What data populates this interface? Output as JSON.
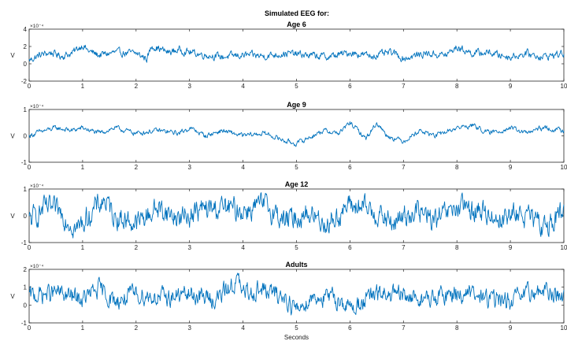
{
  "figure_title": "Simulated EEG for:",
  "chart_data": [
    {
      "type": "line",
      "title": "Age 6",
      "xlabel": "",
      "ylabel": "V",
      "y_scale_exponent": "×10⁻⁴",
      "xlim": [
        0,
        10
      ],
      "ylim": [
        -2,
        4
      ],
      "xticks": [
        "0",
        "1",
        "2",
        "3",
        "4",
        "5",
        "6",
        "7",
        "8",
        "9",
        "10"
      ],
      "yticks": [
        "-2",
        "0",
        "2",
        "4"
      ],
      "series": [
        {
          "color": "#0072BD",
          "baseline": 1.0,
          "noise_amplitude": 0.45,
          "x": [
            0,
            0.2,
            0.4,
            0.6,
            0.8,
            1.0,
            1.1,
            1.3,
            1.6,
            2.0,
            2.2,
            2.3,
            2.6,
            2.8,
            3.2,
            3.6,
            4.0,
            4.4,
            4.8,
            5.2,
            5.6,
            6.0,
            6.4,
            6.8,
            7.0,
            7.4,
            7.8,
            8.0,
            8.3,
            8.6,
            8.8,
            9.0,
            9.3,
            9.6,
            10.0
          ],
          "y": [
            0.4,
            1.0,
            1.3,
            0.9,
            1.2,
            2.2,
            1.5,
            1.0,
            1.3,
            1.2,
            0.6,
            2.1,
            1.3,
            1.6,
            1.1,
            0.8,
            1.0,
            0.9,
            1.2,
            1.0,
            0.8,
            1.3,
            0.9,
            1.3,
            0.6,
            1.2,
            1.0,
            1.9,
            1.2,
            1.3,
            1.0,
            0.8,
            1.2,
            0.8,
            1.2
          ]
        }
      ]
    },
    {
      "type": "line",
      "title": "Age 9",
      "xlabel": "",
      "ylabel": "V",
      "y_scale_exponent": "×10⁻⁴",
      "xlim": [
        0,
        10
      ],
      "ylim": [
        -1,
        1
      ],
      "xticks": [
        "0",
        "1",
        "2",
        "3",
        "4",
        "5",
        "6",
        "7",
        "8",
        "9",
        "10"
      ],
      "yticks": [
        "-1",
        "0",
        "1"
      ],
      "series": [
        {
          "color": "#0072BD",
          "baseline": 0.1,
          "noise_amplitude": 0.1,
          "x": [
            0,
            0.2,
            0.5,
            0.8,
            1.0,
            1.3,
            1.6,
            2.0,
            2.4,
            2.8,
            3.0,
            3.3,
            3.6,
            4.0,
            4.4,
            4.8,
            5.0,
            5.2,
            5.5,
            5.8,
            6.0,
            6.3,
            6.5,
            6.7,
            7.0,
            7.3,
            7.6,
            8.0,
            8.3,
            8.6,
            9.0,
            9.3,
            9.6,
            10.0
          ],
          "y": [
            0.0,
            0.15,
            0.3,
            0.2,
            0.3,
            0.1,
            0.3,
            0.1,
            0.2,
            0.1,
            0.3,
            0.0,
            0.2,
            0.0,
            0.1,
            -0.2,
            -0.3,
            -0.1,
            0.2,
            0.1,
            0.5,
            -0.1,
            0.5,
            0.0,
            -0.2,
            0.2,
            0.0,
            0.3,
            0.4,
            0.1,
            0.3,
            0.1,
            0.3,
            0.2
          ]
        }
      ]
    },
    {
      "type": "line",
      "title": "Age 12",
      "xlabel": "",
      "ylabel": "V",
      "y_scale_exponent": "×10⁻⁴",
      "xlim": [
        0,
        10
      ],
      "ylim": [
        -1,
        1
      ],
      "xticks": [
        "0",
        "1",
        "2",
        "3",
        "4",
        "5",
        "6",
        "7",
        "8",
        "9",
        "10"
      ],
      "yticks": [
        "-1",
        "0",
        "1"
      ],
      "series": [
        {
          "color": "#0072BD",
          "baseline": 0.0,
          "noise_amplitude": 0.45,
          "x": [
            0,
            0.3,
            0.6,
            0.9,
            1.2,
            1.4,
            1.6,
            2.0,
            2.4,
            2.8,
            3.2,
            3.6,
            4.0,
            4.4,
            4.8,
            5.2,
            5.6,
            6.0,
            6.4,
            6.8,
            7.2,
            7.6,
            8.0,
            8.4,
            8.8,
            9.2,
            9.6,
            10.0
          ],
          "y": [
            -0.2,
            0.3,
            0.1,
            -0.5,
            0.2,
            0.6,
            0.0,
            -0.3,
            0.3,
            -0.1,
            0.2,
            0.3,
            0.2,
            0.4,
            -0.2,
            0.1,
            -0.3,
            0.4,
            0.2,
            -0.3,
            0.2,
            -0.2,
            0.3,
            0.2,
            -0.1,
            0.1,
            -0.4,
            0.1
          ]
        }
      ]
    },
    {
      "type": "line",
      "title": "Adults",
      "xlabel": "Seconds",
      "ylabel": "V",
      "y_scale_exponent": "×10⁻⁴",
      "xlim": [
        0,
        10
      ],
      "ylim": [
        -1,
        2
      ],
      "xticks": [
        "0",
        "1",
        "2",
        "3",
        "4",
        "5",
        "6",
        "7",
        "8",
        "9",
        "10"
      ],
      "yticks": [
        "-1",
        "0",
        "1",
        "2"
      ],
      "series": [
        {
          "color": "#0072BD",
          "baseline": 0.5,
          "noise_amplitude": 0.55,
          "x": [
            0,
            0.5,
            1.0,
            1.3,
            1.6,
            2.0,
            2.5,
            3.0,
            3.5,
            3.9,
            4.0,
            4.3,
            4.8,
            5.0,
            5.3,
            5.8,
            6.0,
            6.5,
            7.0,
            7.5,
            8.0,
            8.5,
            9.0,
            9.5,
            10.0
          ],
          "y": [
            0.5,
            0.7,
            0.3,
            0.9,
            0.2,
            0.6,
            0.4,
            0.6,
            0.3,
            1.4,
            0.6,
            0.9,
            0.4,
            -0.3,
            0.5,
            0.3,
            -0.2,
            0.6,
            0.5,
            0.3,
            0.7,
            0.4,
            0.2,
            0.8,
            0.5
          ]
        }
      ]
    }
  ]
}
